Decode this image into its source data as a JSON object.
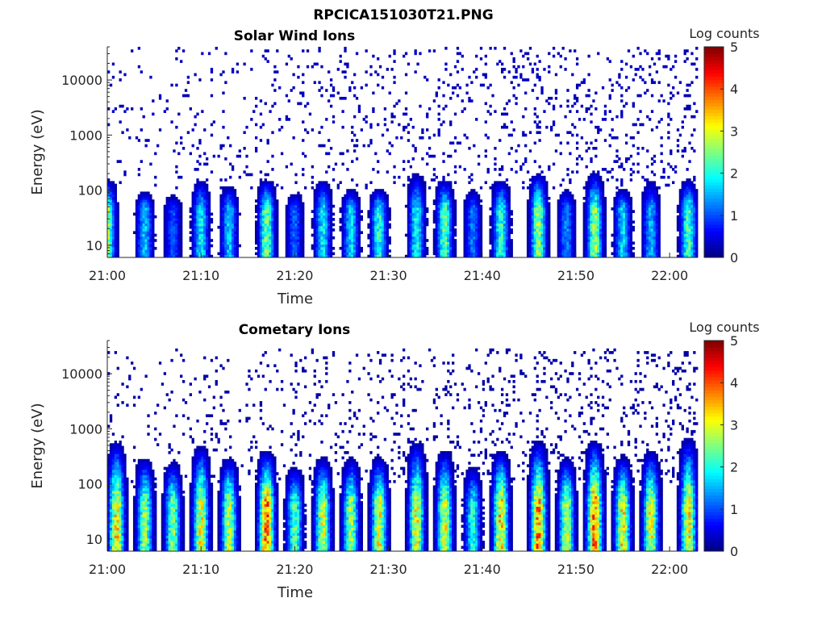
{
  "figure_title": "RPCICA151030T21.PNG",
  "chart_data": [
    {
      "type": "heatmap",
      "title": "Solar Wind Ions",
      "xlabel": "Time",
      "ylabel": "Energy (eV)",
      "x_ticks": [
        "21:00",
        "21:10",
        "21:20",
        "21:30",
        "21:40",
        "21:50",
        "22:00"
      ],
      "x_range": [
        "21:00",
        "22:03"
      ],
      "y_scale": "log",
      "y_ticks": [
        "10",
        "100",
        "1000",
        "10000"
      ],
      "y_range": [
        6,
        40000
      ],
      "colorbar": {
        "label": "Log counts",
        "range": [
          0,
          5
        ],
        "ticks": [
          "0",
          "1",
          "2",
          "3",
          "4",
          "5"
        ],
        "colormap": "jet"
      },
      "bursts": [
        {
          "time": "21:00",
          "peak": 2.6,
          "top_energy": 150
        },
        {
          "time": "21:04",
          "peak": 1.6,
          "top_energy": 90
        },
        {
          "time": "21:07",
          "peak": 1.0,
          "top_energy": 80
        },
        {
          "time": "21:10",
          "peak": 1.8,
          "top_energy": 150
        },
        {
          "time": "21:13",
          "peak": 1.6,
          "top_energy": 120
        },
        {
          "time": "21:17",
          "peak": 2.4,
          "top_energy": 150
        },
        {
          "time": "21:20",
          "peak": 1.1,
          "top_energy": 90
        },
        {
          "time": "21:23",
          "peak": 1.8,
          "top_energy": 150
        },
        {
          "time": "21:26",
          "peak": 1.7,
          "top_energy": 100
        },
        {
          "time": "21:29",
          "peak": 2.0,
          "top_energy": 100
        },
        {
          "time": "21:33",
          "peak": 1.9,
          "top_energy": 200
        },
        {
          "time": "21:36",
          "peak": 2.3,
          "top_energy": 150
        },
        {
          "time": "21:39",
          "peak": 1.2,
          "top_energy": 100
        },
        {
          "time": "21:42",
          "peak": 2.1,
          "top_energy": 150
        },
        {
          "time": "21:46",
          "peak": 2.6,
          "top_energy": 200
        },
        {
          "time": "21:49",
          "peak": 1.3,
          "top_energy": 100
        },
        {
          "time": "21:52",
          "peak": 2.6,
          "top_energy": 200
        },
        {
          "time": "21:55",
          "peak": 1.7,
          "top_energy": 100
        },
        {
          "time": "21:58",
          "peak": 1.5,
          "top_energy": 150
        },
        {
          "time": "22:02",
          "peak": 2.2,
          "top_energy": 150
        }
      ],
      "background_energy_range": [
        100,
        40000
      ],
      "background_level": 0.3
    },
    {
      "type": "heatmap",
      "title": "Cometary Ions",
      "xlabel": "Time",
      "ylabel": "Energy (eV)",
      "x_ticks": [
        "21:00",
        "21:10",
        "21:20",
        "21:30",
        "21:40",
        "21:50",
        "22:00"
      ],
      "x_range": [
        "21:00",
        "22:03"
      ],
      "y_scale": "log",
      "y_ticks": [
        "10",
        "100",
        "1000",
        "10000"
      ],
      "y_range": [
        6,
        40000
      ],
      "colorbar": {
        "label": "Log counts",
        "range": [
          0,
          5
        ],
        "ticks": [
          "0",
          "1",
          "2",
          "3",
          "4",
          "5"
        ],
        "colormap": "jet"
      },
      "bursts": [
        {
          "time": "21:01",
          "peak": 3.2,
          "top_energy": 600
        },
        {
          "time": "21:04",
          "peak": 2.6,
          "top_energy": 300
        },
        {
          "time": "21:07",
          "peak": 2.5,
          "top_energy": 250
        },
        {
          "time": "21:10",
          "peak": 3.0,
          "top_energy": 500
        },
        {
          "time": "21:13",
          "peak": 2.8,
          "top_energy": 300
        },
        {
          "time": "21:17",
          "peak": 3.8,
          "top_energy": 400
        },
        {
          "time": "21:20",
          "peak": 2.3,
          "top_energy": 200
        },
        {
          "time": "21:23",
          "peak": 2.9,
          "top_energy": 300
        },
        {
          "time": "21:26",
          "peak": 2.6,
          "top_energy": 300
        },
        {
          "time": "21:29",
          "peak": 3.0,
          "top_energy": 300
        },
        {
          "time": "21:33",
          "peak": 3.0,
          "top_energy": 600
        },
        {
          "time": "21:36",
          "peak": 2.9,
          "top_energy": 400
        },
        {
          "time": "21:39",
          "peak": 2.0,
          "top_energy": 200
        },
        {
          "time": "21:42",
          "peak": 3.3,
          "top_energy": 400
        },
        {
          "time": "21:46",
          "peak": 3.6,
          "top_energy": 600
        },
        {
          "time": "21:49",
          "peak": 2.8,
          "top_energy": 300
        },
        {
          "time": "21:52",
          "peak": 3.7,
          "top_energy": 600
        },
        {
          "time": "21:55",
          "peak": 3.1,
          "top_energy": 300
        },
        {
          "time": "21:58",
          "peak": 3.0,
          "top_energy": 400
        },
        {
          "time": "22:02",
          "peak": 3.1,
          "top_energy": 700
        }
      ],
      "background_energy_range": [
        100,
        30000
      ],
      "background_level": 0.2
    }
  ]
}
